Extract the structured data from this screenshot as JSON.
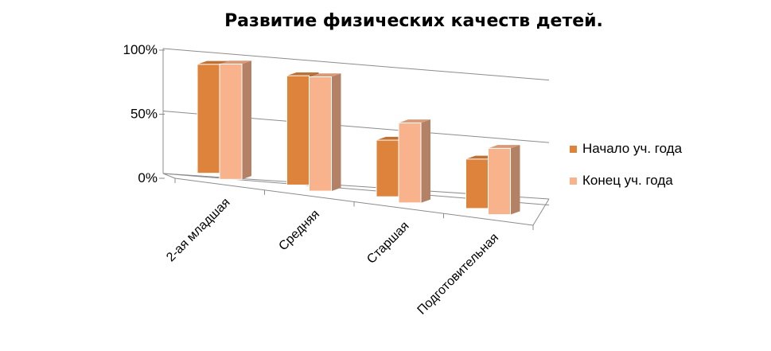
{
  "chart_data": {
    "type": "bar",
    "title": "Развитие физических качеств детей.",
    "categories": [
      "2-ая младшая",
      "Средняя",
      "Старшая",
      "Подготовительная"
    ],
    "series": [
      {
        "name": "Начало уч. года",
        "values": [
          85,
          87,
          46,
          41
        ],
        "color": "#de833b"
      },
      {
        "name": "Конец уч. года",
        "values": [
          90,
          91,
          65,
          55
        ],
        "color": "#f8b38c"
      }
    ],
    "ylim": [
      0,
      100
    ],
    "yticks": [
      "0%",
      "50%",
      "100%"
    ],
    "grid": true,
    "legend": "right",
    "style": "3d-clustered-column"
  }
}
